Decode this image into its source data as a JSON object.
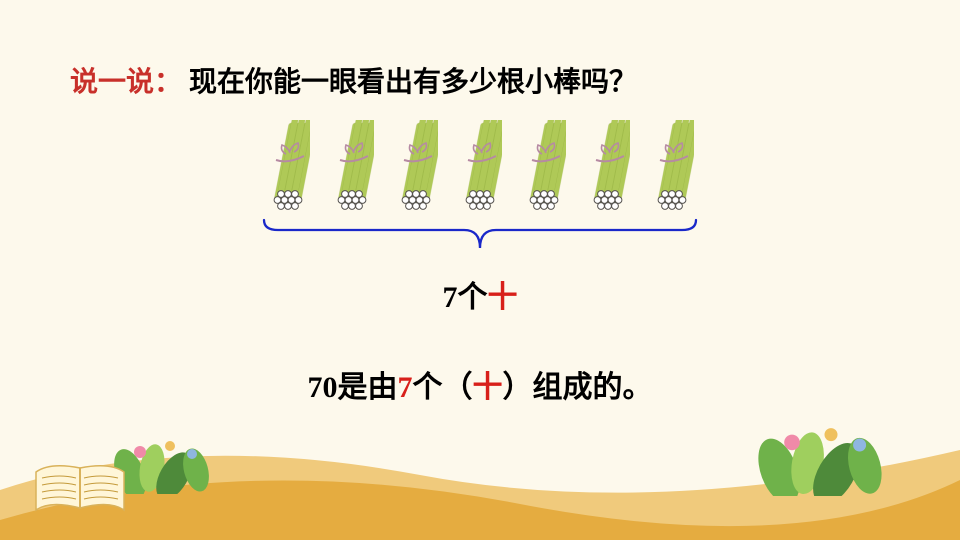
{
  "bg_color": "#fdf9ec",
  "prompt": {
    "label": "说一说：",
    "text": "现在你能一眼看出有多少根小棒吗？",
    "label_color": "#c8302a",
    "text_color": "#000000",
    "fontsize": 28
  },
  "bundles": {
    "count": 7,
    "stick_count_per_bundle": 10,
    "stick_fill": "#c6df6b",
    "stick_stroke": "#6d8a1f",
    "tie_color": "#b68aa3",
    "end_circle_fill": "#ffffff",
    "end_circle_stroke": "#55524f",
    "tilt_deg": 12
  },
  "bracket": {
    "stroke": "#1a28c9",
    "stroke_width": 2.3
  },
  "caption1": {
    "parts": [
      {
        "t": "7个",
        "c": "black"
      },
      {
        "t": "十",
        "c": "red"
      }
    ],
    "fontsize": 30
  },
  "caption2": {
    "parts": [
      {
        "t": "70是由",
        "c": "black"
      },
      {
        "t": "7",
        "c": "red"
      },
      {
        "t": "个（",
        "c": "black"
      },
      {
        "t": "十",
        "c": "red"
      },
      {
        "t": "）组成的。",
        "c": "black"
      }
    ],
    "fontsize": 30
  },
  "ground": {
    "front_color": "#e5ac40",
    "back_color": "#f0ca7c"
  },
  "foliage": {
    "leaf_colors": [
      "#6fb24a",
      "#9fcf5e",
      "#4e8a3a"
    ],
    "flower_colors": [
      "#f08aa8",
      "#efc05e",
      "#8fb6e0"
    ]
  },
  "book": {
    "page_color": "#fff6d8",
    "line_color": "#c49a3a",
    "spine_color": "#d9b25a"
  }
}
